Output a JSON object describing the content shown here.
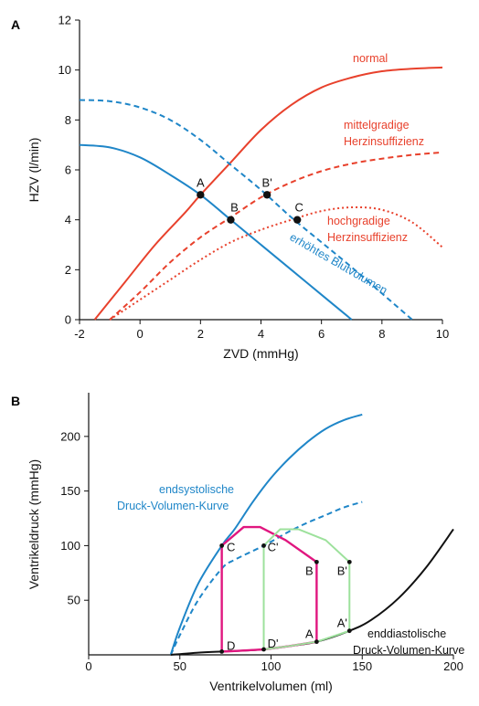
{
  "chart_data": [
    {
      "panel": "A",
      "type": "line",
      "xlabel": "ZVD (mmHg)",
      "ylabel": "HZV (l/min)",
      "xlim": [
        -2,
        10
      ],
      "ylim": [
        0,
        12
      ],
      "xticks": [
        "-2",
        "0",
        "2",
        "4",
        "6",
        "8",
        "10"
      ],
      "yticks": [
        "0",
        "2",
        "4",
        "6",
        "8",
        "10",
        "12"
      ],
      "grid": false,
      "series": [
        {
          "label": "normal",
          "color": "#e8412c",
          "style": "solid",
          "x": [
            -1.5,
            -0.5,
            0.5,
            1.5,
            2.0,
            3.0,
            4.0,
            5.0,
            6.0,
            7.0,
            8.0,
            9.0,
            10.0
          ],
          "y": [
            0,
            1.5,
            3.0,
            4.3,
            5.0,
            6.3,
            7.6,
            8.6,
            9.3,
            9.7,
            9.95,
            10.05,
            10.1
          ]
        },
        {
          "label": "mittelgradige Herzinsuffizienz",
          "color": "#e8412c",
          "style": "dashed",
          "x": [
            -1.0,
            0,
            1,
            2,
            3,
            4,
            5,
            6,
            7,
            8,
            9,
            10
          ],
          "y": [
            0,
            1.1,
            2.3,
            3.3,
            4.1,
            4.9,
            5.5,
            5.95,
            6.25,
            6.45,
            6.6,
            6.7
          ]
        },
        {
          "label": "hochgradige Herzinsuffizienz",
          "color": "#e8412c",
          "style": "dotted",
          "x": [
            -1.0,
            0,
            1,
            2,
            3,
            4,
            5,
            6,
            7,
            8,
            9,
            10
          ],
          "y": [
            0,
            0.8,
            1.6,
            2.4,
            3.1,
            3.6,
            4.0,
            4.35,
            4.5,
            4.4,
            3.9,
            2.9
          ]
        },
        {
          "label": "",
          "color": "#1f86c8",
          "style": "solid",
          "x": [
            -2,
            -1,
            0,
            1,
            2,
            3,
            4,
            5,
            6,
            7
          ],
          "y": [
            7.0,
            6.9,
            6.5,
            5.8,
            5.0,
            4.0,
            3.0,
            2.0,
            1.0,
            0
          ]
        },
        {
          "label": "erhöhtes Blutvolumen",
          "color": "#1f86c8",
          "style": "dashed",
          "x": [
            -2,
            -1,
            0,
            1,
            2,
            3,
            4,
            5,
            6,
            7,
            8,
            9
          ],
          "y": [
            8.8,
            8.75,
            8.5,
            8.0,
            7.2,
            6.2,
            5.2,
            4.1,
            3.1,
            2.1,
            1.05,
            0
          ]
        }
      ],
      "points": [
        {
          "label": "A",
          "x": 2.0,
          "y": 5.0
        },
        {
          "label": "B",
          "x": 3.0,
          "y": 4.0
        },
        {
          "label": "B'",
          "x": 4.2,
          "y": 5.0
        },
        {
          "label": "C",
          "x": 5.2,
          "y": 4.0
        }
      ]
    },
    {
      "panel": "B",
      "type": "line",
      "xlabel": "Ventrikelvolumen (ml)",
      "ylabel": "Ventrikeldruck (mmHg)",
      "xlim": [
        0,
        200
      ],
      "ylim": [
        0,
        240
      ],
      "xticks": [
        "0",
        "50",
        "100",
        "150",
        "200"
      ],
      "yticks": [
        "50",
        "100",
        "150",
        "200"
      ],
      "grid": false,
      "series": [
        {
          "label": "endsystolische Druck-Volumen-Kurve",
          "color": "#1f86c8",
          "style": "solid",
          "x": [
            45,
            50,
            60,
            73,
            80,
            90,
            100,
            110,
            120,
            130,
            140,
            150
          ],
          "y": [
            0,
            25,
            65,
            100,
            115,
            140,
            162,
            180,
            195,
            207,
            215,
            220
          ]
        },
        {
          "label": "",
          "color": "#1f86c8",
          "style": "dashed",
          "x": [
            45,
            50,
            60,
            73,
            80,
            96,
            110,
            120,
            130,
            140,
            150
          ],
          "y": [
            0,
            18,
            50,
            79,
            87,
            100,
            113,
            121,
            128,
            135,
            140
          ]
        },
        {
          "label": "enddiastolische Druck-Volumen-Kurve",
          "color": "#111111",
          "style": "solid",
          "x": [
            45,
            60,
            73,
            80,
            96,
            110,
            125,
            143,
            155,
            170,
            185,
            200
          ],
          "y": [
            0,
            2,
            3,
            3.5,
            5,
            8,
            12,
            22,
            32,
            52,
            80,
            115
          ]
        },
        {
          "label": "",
          "color": "#e0167f",
          "style": "solid",
          "x": [
            125,
            125,
            108,
            94,
            85,
            73,
            73,
            80,
            96,
            110,
            125
          ],
          "y": [
            12,
            85,
            105,
            117,
            117,
            100,
            3,
            3.5,
            5,
            8,
            12
          ]
        },
        {
          "label": "",
          "color": "#9de19c",
          "style": "solid",
          "x": [
            143,
            143,
            130,
            115,
            105,
            96,
            96,
            110,
            125,
            143
          ],
          "y": [
            22,
            85,
            105,
            115,
            115,
            100,
            5,
            8,
            12,
            22
          ]
        }
      ],
      "points": [
        {
          "label": "A",
          "x": 125,
          "y": 12
        },
        {
          "label": "B",
          "x": 125,
          "y": 85
        },
        {
          "label": "C",
          "x": 73,
          "y": 100
        },
        {
          "label": "D",
          "x": 73,
          "y": 3
        },
        {
          "label": "A'",
          "x": 143,
          "y": 22
        },
        {
          "label": "B'",
          "x": 143,
          "y": 85
        },
        {
          "label": "C'",
          "x": 96,
          "y": 100
        },
        {
          "label": "D'",
          "x": 96,
          "y": 5
        }
      ]
    }
  ],
  "panelA": {
    "letter": "A",
    "ann_normal": "normal",
    "ann_mittel_1": "mittelgradige",
    "ann_mittel_2": "Herzinsuffizienz",
    "ann_hoch_1": "hochgradige",
    "ann_hoch_2": "Herzinsuffizienz",
    "ann_blut": "erhöhtes Blutvolumen"
  },
  "panelB": {
    "letter": "B",
    "ann_esv_1": "endsystolische",
    "ann_esv_2": "Druck-Volumen-Kurve",
    "ann_edv_1": "enddiastolische",
    "ann_edv_2": "Druck-Volumen-Kurve"
  },
  "colors": {
    "red": "#e8412c",
    "blue": "#1f86c8",
    "magenta": "#e0167f",
    "lightgreen": "#9de19c",
    "black": "#111111"
  }
}
